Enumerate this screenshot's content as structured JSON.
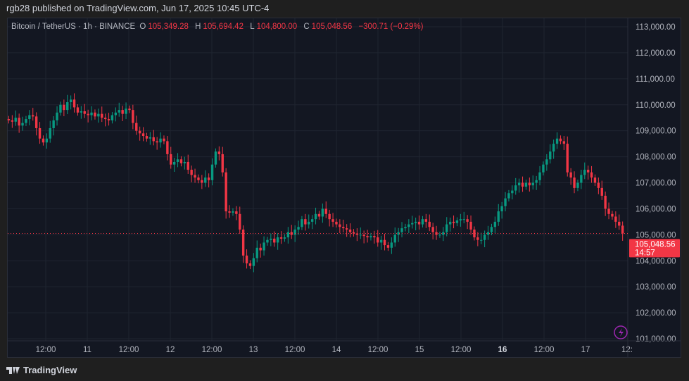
{
  "publisher_line": "rgb28 published on TradingView.com, Jun 17, 2025 10:45 UTC-4",
  "legend": {
    "symbol": "Bitcoin / TetherUS · 1h · BINANCE",
    "o_label": "O",
    "o": "105,349.28",
    "h_label": "H",
    "h": "105,694.42",
    "l_label": "L",
    "l": "104,800.00",
    "c_label": "C",
    "c": "105,048.56",
    "change": "−300.71 (−0.29%)"
  },
  "last_price": {
    "price": "105,048.56",
    "countdown": "14:57"
  },
  "footer_logo": "TradingView",
  "colors": {
    "up": "#089981",
    "down": "#f23645",
    "background": "#131722"
  },
  "icons": [
    "lightning-icon",
    "tradingview-logo-icon"
  ],
  "chart_data": {
    "type": "candlestick",
    "interval": "1h",
    "ylim": [
      101000,
      113000
    ],
    "y_ticks": [
      "113,000.00",
      "112,000.00",
      "111,000.00",
      "110,000.00",
      "109,000.00",
      "108,000.00",
      "107,000.00",
      "106,000.00",
      "105,000.00",
      "104,000.00",
      "103,000.00",
      "102,000.00",
      "101,000.00"
    ],
    "x_ticks": [
      "12:00",
      "11",
      "12:00",
      "12",
      "12:00",
      "13",
      "12:00",
      "14",
      "12:00",
      "15",
      "12:00",
      "16",
      "12:00",
      "17",
      "12:"
    ],
    "grid": true,
    "closes": [
      109400,
      109350,
      109500,
      109200,
      109300,
      109450,
      109600,
      109550,
      109100,
      108700,
      108550,
      108700,
      109100,
      109400,
      109700,
      110000,
      109800,
      110100,
      110200,
      109900,
      109700,
      109750,
      109650,
      109600,
      109700,
      109550,
      109650,
      109500,
      109450,
      109400,
      109600,
      109700,
      109800,
      109650,
      109850,
      109800,
      109300,
      109000,
      108900,
      108800,
      108700,
      108750,
      108600,
      108550,
      108700,
      108600,
      108100,
      107700,
      107800,
      107900,
      107750,
      107800,
      107500,
      107300,
      107200,
      107100,
      107000,
      107200,
      107100,
      107700,
      108200,
      108100,
      107400,
      105900,
      105850,
      105900,
      105800,
      105200,
      104200,
      103900,
      103800,
      104100,
      104500,
      104400,
      104700,
      104800,
      104850,
      104700,
      104900,
      104850,
      104900,
      105100,
      105000,
      105200,
      105300,
      105600,
      105400,
      105500,
      105600,
      105800,
      105700,
      106000,
      105800,
      105600,
      105500,
      105400,
      105300,
      105250,
      105200,
      105100,
      105050,
      105000,
      105000,
      104950,
      104900,
      104950,
      104900,
      104700,
      104800,
      104600,
      104500,
      104700,
      105000,
      105100,
      105250,
      105300,
      105400,
      105450,
      105500,
      105400,
      105600,
      105500,
      105300,
      105100,
      105000,
      105000,
      105100,
      105400,
      105500,
      105450,
      105550,
      105600,
      105600,
      105500,
      105200,
      104900,
      104800,
      104800,
      105000,
      105100,
      105300,
      105500,
      105900,
      106100,
      106400,
      106600,
      106700,
      106900,
      107000,
      106850,
      107000,
      106900,
      107000,
      107100,
      107400,
      107700,
      107900,
      108200,
      108500,
      108700,
      108600,
      108500,
      107400,
      107200,
      106800,
      107000,
      107300,
      107500,
      107400,
      107200,
      107000,
      106800,
      106500,
      106000,
      105800,
      105700,
      105500,
      105350,
      105048.56
    ]
  }
}
